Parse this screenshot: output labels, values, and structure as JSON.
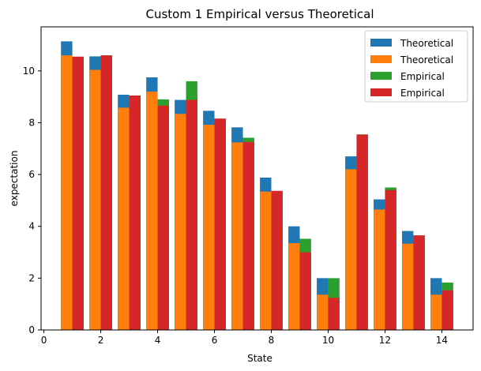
{
  "chart_data": {
    "type": "bar",
    "title": "Custom 1 Empirical versus Theoretical",
    "xlabel": "State",
    "ylabel": "expectation",
    "xlim": [
      -0.1,
      15.1
    ],
    "ylim": [
      0,
      11.7
    ],
    "xticks": [
      0,
      2,
      4,
      6,
      8,
      10,
      12,
      14
    ],
    "yticks": [
      0,
      2,
      4,
      6,
      8,
      10
    ],
    "legend_position": "top-right",
    "grid": false,
    "x": [
      1,
      2,
      3,
      4,
      5,
      6,
      7,
      8,
      9,
      10,
      11,
      12,
      13,
      14
    ],
    "series": [
      {
        "name": "Theoretical",
        "color": "#1f77b4",
        "offset": -0.2,
        "values": [
          11.14,
          10.56,
          9.08,
          9.75,
          8.88,
          8.46,
          7.82,
          5.88,
          4.0,
          2.0,
          6.7,
          5.04,
          3.82,
          2.0
        ]
      },
      {
        "name": "Theoretical",
        "color": "#ff7f0e",
        "offset": -0.2,
        "values": [
          10.6,
          10.04,
          8.58,
          9.2,
          8.34,
          7.92,
          7.24,
          5.34,
          3.35,
          1.36,
          6.2,
          4.65,
          3.33,
          1.36
        ]
      },
      {
        "name": "Empirical",
        "color": "#2ca02c",
        "offset": 0.2,
        "values": [
          10.5,
          10.6,
          9.05,
          8.9,
          9.6,
          8.1,
          7.42,
          5.3,
          3.52,
          2.0,
          7.55,
          5.5,
          3.65,
          1.83
        ]
      },
      {
        "name": "Empirical",
        "color": "#d62728",
        "offset": 0.2,
        "values": [
          10.55,
          10.6,
          9.05,
          8.66,
          8.88,
          8.16,
          7.26,
          5.37,
          3.0,
          1.24,
          7.54,
          5.4,
          3.65,
          1.53
        ]
      }
    ]
  }
}
